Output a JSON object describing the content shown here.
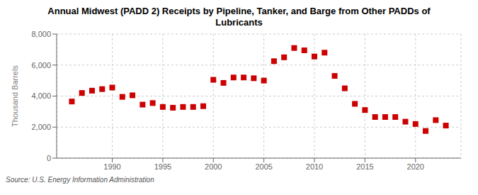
{
  "chart_data": {
    "type": "scatter",
    "title": "Annual Midwest (PADD 2) Receipts by Pipeline, Tanker, and Barge from Other PADDs of\nLubricants",
    "ylabel": "Thousand Barrels",
    "annotations": [
      "Source: U.S. Energy Information Administration"
    ],
    "x": [
      1986,
      1987,
      1988,
      1989,
      1990,
      1991,
      1992,
      1993,
      1994,
      1995,
      1996,
      1997,
      1998,
      1999,
      2000,
      2001,
      2002,
      2003,
      2004,
      2005,
      2006,
      2007,
      2008,
      2009,
      2010,
      2011,
      2012,
      2013,
      2014,
      2015,
      2016,
      2017,
      2018,
      2019,
      2020,
      2021,
      2022,
      2023
    ],
    "values": [
      3650,
      4200,
      4350,
      4450,
      4550,
      3950,
      4050,
      3450,
      3550,
      3300,
      3250,
      3300,
      3300,
      3350,
      5050,
      4850,
      5200,
      5200,
      5150,
      5000,
      6250,
      6500,
      7100,
      6950,
      6550,
      6800,
      5300,
      4500,
      3500,
      3100,
      2650,
      2650,
      2650,
      2350,
      2200,
      1750,
      2450,
      2100
    ],
    "color": "#cc0000",
    "marker": "square",
    "xlim": [
      1984.5,
      2024.5
    ],
    "xticks": [
      1990,
      1995,
      2000,
      2005,
      2010,
      2015,
      2020
    ],
    "ylim": [
      0,
      8000
    ],
    "yticks": [
      0,
      {
        "value": 2000,
        "label": "2,000"
      },
      {
        "value": 4000,
        "label": "4,000"
      },
      {
        "value": 6000,
        "label": "6,000"
      },
      {
        "value": 8000,
        "label": "8,000"
      }
    ],
    "grid": true
  }
}
